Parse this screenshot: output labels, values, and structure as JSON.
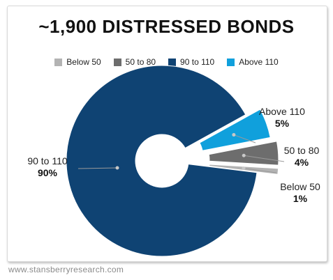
{
  "chart_data": {
    "type": "pie",
    "title": "~1,900 DISTRESSED BONDS",
    "legend": {
      "placement": "top",
      "entries": [
        "Below 50",
        "50 to 80",
        "90 to 110",
        "Above 110"
      ]
    },
    "slices": [
      {
        "label": "90 to 110",
        "value": 90,
        "value_label": "90%",
        "color": "#0f4373"
      },
      {
        "label": "Above 110",
        "value": 5,
        "value_label": "5%",
        "color": "#10a0dc"
      },
      {
        "label": "50 to 80",
        "value": 4,
        "value_label": "4%",
        "color": "#6d6d6d"
      },
      {
        "label": "Below 50",
        "value": 1,
        "value_label": "1%",
        "color": "#b3b3b3"
      }
    ]
  },
  "footer": "www.stansberryresearch.com"
}
